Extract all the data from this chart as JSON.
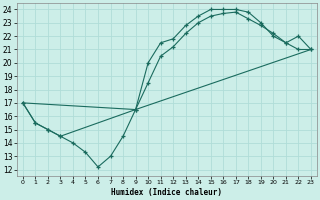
{
  "xlabel": "Humidex (Indice chaleur)",
  "bg_color": "#cceee8",
  "grid_color": "#b0ddd8",
  "line_color": "#1a6b5e",
  "xlim": [
    -0.5,
    23.5
  ],
  "ylim": [
    11.5,
    24.5
  ],
  "xticks": [
    0,
    1,
    2,
    3,
    4,
    5,
    6,
    7,
    8,
    9,
    10,
    11,
    12,
    13,
    14,
    15,
    16,
    17,
    18,
    19,
    20,
    21,
    22,
    23
  ],
  "yticks": [
    12,
    13,
    14,
    15,
    16,
    17,
    18,
    19,
    20,
    21,
    22,
    23,
    24
  ],
  "line1_x": [
    0,
    1,
    2,
    3,
    4,
    5,
    6,
    7,
    8,
    9,
    10,
    11,
    12,
    13,
    14,
    15,
    16,
    17,
    18,
    19,
    20,
    21,
    22,
    23
  ],
  "line1_y": [
    17.0,
    15.5,
    15.0,
    14.5,
    14.0,
    13.3,
    12.2,
    13.0,
    14.5,
    16.5,
    20.0,
    21.5,
    21.8,
    22.8,
    23.5,
    24.0,
    24.0,
    24.0,
    23.8,
    23.0,
    22.0,
    21.5,
    21.0,
    21.0
  ],
  "line2_x": [
    0,
    1,
    2,
    3,
    9,
    10,
    11,
    12,
    13,
    14,
    15,
    16,
    17,
    18,
    19,
    20,
    21,
    22,
    23
  ],
  "line2_y": [
    17.0,
    15.5,
    15.0,
    14.5,
    16.5,
    18.5,
    20.5,
    21.2,
    22.2,
    23.0,
    23.5,
    23.7,
    23.8,
    23.3,
    22.8,
    22.2,
    21.5,
    22.0,
    21.0
  ],
  "line3_x": [
    0,
    9,
    23
  ],
  "line3_y": [
    17.0,
    16.5,
    21.0
  ]
}
